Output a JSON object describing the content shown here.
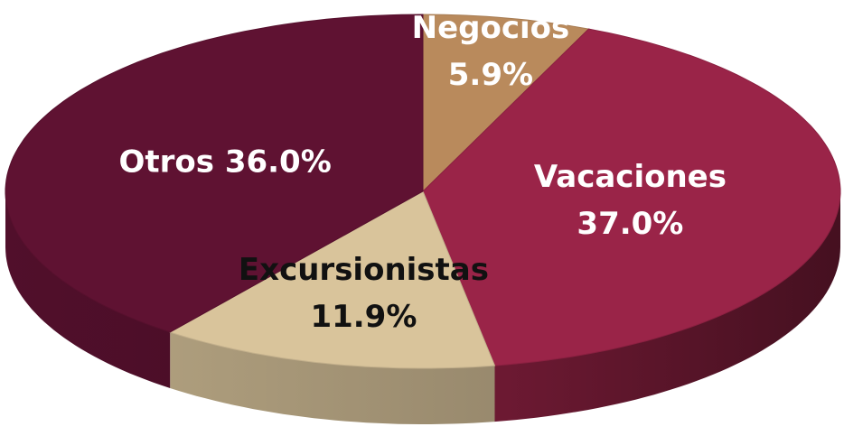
{
  "chart_data": {
    "type": "pie",
    "categories": [
      "Negocios",
      "Vacaciones",
      "Excursionistas",
      "Otros"
    ],
    "values": [
      5.9,
      37.0,
      11.9,
      36.0
    ],
    "value_labels": [
      "5.9%",
      "37.0%",
      "11.9%",
      "36.0%"
    ],
    "colors": [
      "#b98a5c",
      "#9a2448",
      "#d9c49b",
      "#5f1232"
    ]
  }
}
